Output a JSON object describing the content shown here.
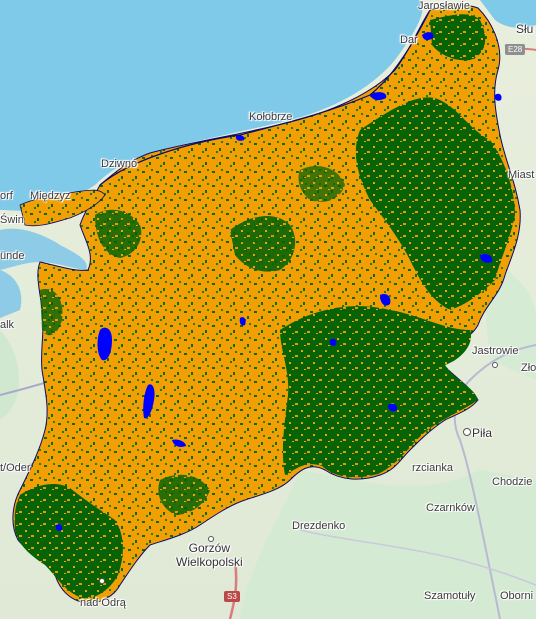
{
  "map": {
    "legend_colors": {
      "cropland": "#ffa500",
      "forest": "#006400",
      "water": "#0000ff",
      "sea": "#7fc9e9",
      "background": "#e8ecd9"
    },
    "labels": {
      "jaroslawiec": "Jarosławie",
      "darlowo": "Dar",
      "slupsk": "Słu",
      "kolobrzeg": "Kołobrze",
      "dziwnow": "Dziwnó",
      "miedzyzdroje": "Międzyz",
      "dorf": "orf",
      "swinoujscie": "Świn",
      "ahlbeck": "ünde",
      "miastko": "Miast",
      "alk": "alk",
      "jastrowie": "Jastrowie",
      "zlotow": "Zło",
      "pila": "Piła",
      "trzcianka": "rzcianka",
      "chodziez": "Chodzie",
      "oder": "t/Oder",
      "czarnkow": "Czarnków",
      "drezdenko": "Drezdenko",
      "gorzow": "Gorzów\nWielkopolski",
      "nad_odra": "nad Odrą",
      "szamotuly": "Szamotuły",
      "oborniki": "Oborni"
    },
    "roads": {
      "s3": "S3",
      "e28": "E28"
    }
  }
}
